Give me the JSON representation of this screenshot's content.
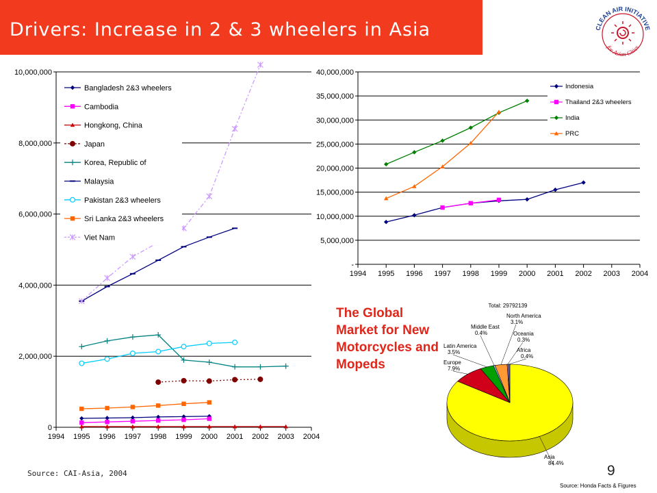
{
  "slide": {
    "title": "Drivers: Increase in 2 & 3 wheelers in Asia",
    "page_number": "9",
    "source_left": "Source: CAI-Asia, 2004",
    "global_market_text": "The Global Market for New Motorcycles and Mopeds",
    "logo": {
      "name": "clean-air-initiative-logo",
      "top_text": "CLEAN AIR INITIATIVE",
      "bottom_text": "for Asian Cities"
    }
  },
  "colors": {
    "title_bar": "#f23a1f",
    "title_text": "#ffffff",
    "highlight_text": "#e0261a"
  },
  "chart_data": [
    {
      "type": "line",
      "x": [
        1994,
        1995,
        1996,
        1997,
        1998,
        1999,
        2000,
        2001,
        2002,
        2003,
        2004
      ],
      "x_tick_labels": [
        "1994",
        "1995",
        "1996",
        "1997",
        "1998",
        "1999",
        "2000",
        "2001",
        "2002",
        "2003",
        "2004"
      ],
      "ylim": [
        0,
        10000000
      ],
      "y_tick_labels": [
        "0",
        "2,000,000",
        "4,000,000",
        "6,000,000",
        "8,000,000",
        "10,000,000"
      ],
      "grid": "horizontal",
      "legend_position": "top-left",
      "series": [
        {
          "name": "Bangladesh 2&3 wheelers",
          "color": "#00007f",
          "marker": "diamond",
          "dashed": false,
          "x": [
            1995,
            1996,
            1997,
            1998,
            1999,
            2000
          ],
          "values": [
            250000,
            260000,
            270000,
            290000,
            300000,
            310000
          ]
        },
        {
          "name": "Cambodia",
          "color": "#ff00ff",
          "marker": "square",
          "dashed": false,
          "x": [
            1995,
            1996,
            1997,
            1998,
            1999,
            2000
          ],
          "values": [
            130000,
            150000,
            170000,
            190000,
            210000,
            240000
          ]
        },
        {
          "name": "Hongkong, China",
          "color": "#cc0000",
          "marker": "triangle",
          "dashed": false,
          "x": [
            1995,
            1996,
            1997,
            1998,
            1999,
            2000,
            2001,
            2002,
            2003
          ],
          "values": [
            20000,
            20000,
            20000,
            20000,
            20000,
            20000,
            20000,
            20000,
            20000
          ]
        },
        {
          "name": "Japan",
          "color": "#7f0000",
          "marker": "circle-filled",
          "dashed": true,
          "x": [
            1998,
            1999,
            2000,
            2001,
            2002
          ],
          "values": [
            1270000,
            1310000,
            1300000,
            1340000,
            1350000
          ]
        },
        {
          "name": "Korea, Republic of",
          "color": "#008080",
          "marker": "plus",
          "dashed": false,
          "x": [
            1995,
            1996,
            1997,
            1998,
            1999,
            2000,
            2001,
            2002,
            2003
          ],
          "values": [
            2270000,
            2430000,
            2540000,
            2600000,
            1890000,
            1830000,
            1700000,
            1700000,
            1720000
          ]
        },
        {
          "name": "Malaysia",
          "color": "#00007f",
          "marker": "dash",
          "dashed": false,
          "x": [
            1995,
            1996,
            1997,
            1998,
            1999,
            2000,
            2001
          ],
          "values": [
            3550000,
            3960000,
            4320000,
            4700000,
            5080000,
            5350000,
            5600000
          ]
        },
        {
          "name": "Pakistan 2&3 wheelers",
          "color": "#00ccff",
          "marker": "circle-open",
          "dashed": false,
          "x": [
            1995,
            1996,
            1997,
            1998,
            1999,
            2000,
            2001
          ],
          "values": [
            1800000,
            1920000,
            2080000,
            2130000,
            2270000,
            2360000,
            2390000
          ]
        },
        {
          "name": "Sri Lanka 2&3 wheelers",
          "color": "#ff6600",
          "marker": "square",
          "dashed": false,
          "x": [
            1995,
            1996,
            1997,
            1998,
            1999,
            2000
          ],
          "values": [
            520000,
            540000,
            570000,
            610000,
            660000,
            700000
          ]
        },
        {
          "name": "Viet Nam",
          "color": "#cc99ff",
          "marker": "star",
          "dashed": true,
          "x": [
            1995,
            1996,
            1997,
            1998,
            1999,
            2000,
            2001,
            2002
          ],
          "values": [
            3550000,
            4200000,
            4800000,
            5200000,
            5600000,
            6500000,
            8400000,
            10200000
          ]
        }
      ]
    },
    {
      "type": "line",
      "x": [
        1994,
        1995,
        1996,
        1997,
        1998,
        1999,
        2000,
        2001,
        2002,
        2003,
        2004
      ],
      "x_tick_labels": [
        "1994",
        "1995",
        "1996",
        "1997",
        "1998",
        "1999",
        "2000",
        "2001",
        "2002",
        "2003",
        "2004"
      ],
      "ylim": [
        0,
        40000000
      ],
      "y_tick_labels": [
        "-",
        "5,000,000",
        "10,000,000",
        "15,000,000",
        "20,000,000",
        "25,000,000",
        "30,000,000",
        "35,000,000",
        "40,000,000"
      ],
      "grid": "horizontal",
      "legend_position": "top-right",
      "series": [
        {
          "name": "Indonesia",
          "color": "#00007f",
          "marker": "diamond",
          "x": [
            1995,
            1996,
            1997,
            1998,
            1999,
            2000,
            2001,
            2002
          ],
          "values": [
            8800000,
            10200000,
            11800000,
            12700000,
            13200000,
            13500000,
            15500000,
            17000000
          ]
        },
        {
          "name": "Thailand 2&3 wheelers",
          "color": "#ff00ff",
          "marker": "square",
          "x": [
            1997,
            1998,
            1999
          ],
          "values": [
            11800000,
            12700000,
            13400000
          ]
        },
        {
          "name": "India",
          "color": "#008000",
          "marker": "diamond",
          "x": [
            1995,
            1996,
            1997,
            1998,
            1999,
            2000
          ],
          "values": [
            20800000,
            23300000,
            25700000,
            28400000,
            31500000,
            34000000
          ]
        },
        {
          "name": "PRC",
          "color": "#ff6600",
          "marker": "triangle",
          "x": [
            1995,
            1996,
            1997,
            1998,
            1999
          ],
          "values": [
            13700000,
            16200000,
            20300000,
            25200000,
            31700000
          ]
        }
      ]
    },
    {
      "type": "pie",
      "title": "Total: 29792139",
      "source": "Source: Honda Facts & Figures",
      "slices": [
        {
          "label": "Asia",
          "pct_label": "84.4%",
          "value": 84.4,
          "color": "#ffff00"
        },
        {
          "label": "Europe",
          "pct_label": "7.9%",
          "value": 7.9,
          "color": "#d0001a"
        },
        {
          "label": "Latin America",
          "pct_label": "3.5%",
          "value": 3.5,
          "color": "#00a000"
        },
        {
          "label": "Middle East",
          "pct_label": "0.4%",
          "value": 0.4,
          "color": "#99ccff"
        },
        {
          "label": "North America",
          "pct_label": "3.1%",
          "value": 3.1,
          "color": "#ff9933"
        },
        {
          "label": "Oceania",
          "pct_label": "0.3%",
          "value": 0.3,
          "color": "#cc99ff"
        },
        {
          "label": "Africa",
          "pct_label": "0.4%",
          "value": 0.4,
          "color": "#666699"
        }
      ]
    }
  ]
}
